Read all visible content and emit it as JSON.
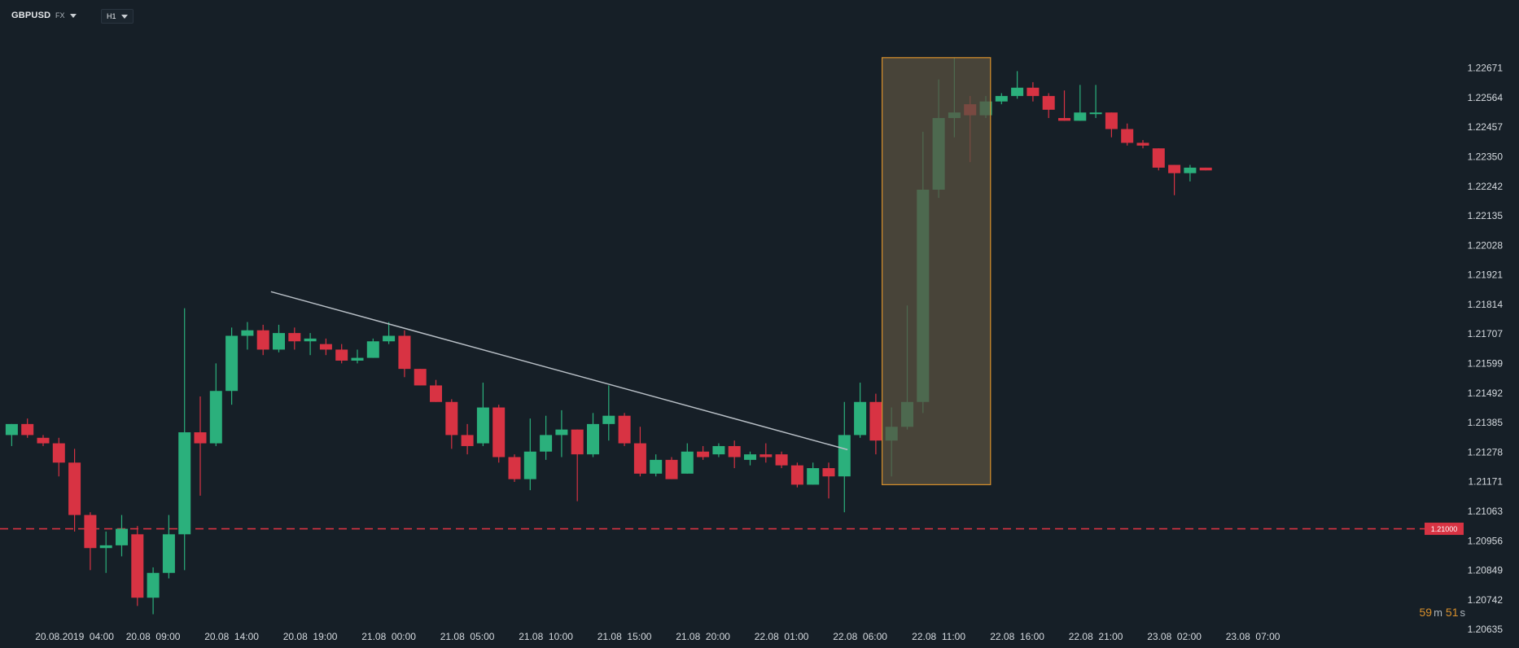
{
  "header": {
    "symbol": "GBPUSD",
    "market": "FX",
    "timeframe": "H1"
  },
  "countdown": {
    "minutes": "59",
    "minutes_unit": "m",
    "seconds": "51",
    "seconds_unit": "s"
  },
  "colors": {
    "background": "#161f27",
    "up": "#2bb07c",
    "down": "#d83343",
    "trendline": "#b7bec5",
    "highlight_border": "#d9902b",
    "highlight_fill": "#5a5240",
    "level_line": "#d83343"
  },
  "chart_data": {
    "type": "candlestick",
    "y_ticks": [
      "1.22671",
      "1.22564",
      "1.22457",
      "1.22350",
      "1.22242",
      "1.22135",
      "1.22028",
      "1.21921",
      "1.21814",
      "1.21707",
      "1.21599",
      "1.21492",
      "1.21385",
      "1.21278",
      "1.21171",
      "1.21063",
      "1.20956",
      "1.20849",
      "1.20742",
      "1.20635"
    ],
    "ylim": [
      1.206,
      1.228
    ],
    "x_labels": [
      "20.08.2019  04:00",
      "20.08  09:00",
      "20.08  14:00",
      "20.08  19:00",
      "21.08  00:00",
      "21.08  05:00",
      "21.08  10:00",
      "21.08  15:00",
      "21.08  20:00",
      "22.08  01:00",
      "22.08  06:00",
      "22.08  11:00",
      "22.08  16:00",
      "22.08  21:00",
      "23.08  02:00",
      "23.08  07:00"
    ],
    "x_label_bars": [
      4,
      9,
      14,
      19,
      24,
      29,
      34,
      39,
      44,
      49,
      54,
      59,
      64,
      69,
      74,
      79
    ],
    "candles": [
      {
        "o": 1.2134,
        "h": 1.2138,
        "l": 1.213,
        "c": 1.2138
      },
      {
        "o": 1.2138,
        "h": 1.214,
        "l": 1.2133,
        "c": 1.2134
      },
      {
        "o": 1.2133,
        "h": 1.2134,
        "l": 1.213,
        "c": 1.2131
      },
      {
        "o": 1.2131,
        "h": 1.2133,
        "l": 1.2119,
        "c": 1.2124
      },
      {
        "o": 1.2124,
        "h": 1.2129,
        "l": 1.2099,
        "c": 1.2105
      },
      {
        "o": 1.2105,
        "h": 1.2106,
        "l": 1.2085,
        "c": 1.2093
      },
      {
        "o": 1.2093,
        "h": 1.2099,
        "l": 1.2084,
        "c": 1.2094
      },
      {
        "o": 1.2094,
        "h": 1.2105,
        "l": 1.209,
        "c": 1.21
      },
      {
        "o": 1.2098,
        "h": 1.2101,
        "l": 1.2072,
        "c": 1.2075
      },
      {
        "o": 1.2075,
        "h": 1.2086,
        "l": 1.2069,
        "c": 1.2084
      },
      {
        "o": 1.2084,
        "h": 1.2105,
        "l": 1.2082,
        "c": 1.2098
      },
      {
        "o": 1.2098,
        "h": 1.218,
        "l": 1.2085,
        "c": 1.2135
      },
      {
        "o": 1.2135,
        "h": 1.2148,
        "l": 1.2112,
        "c": 1.2131
      },
      {
        "o": 1.2131,
        "h": 1.216,
        "l": 1.213,
        "c": 1.215
      },
      {
        "o": 1.215,
        "h": 1.2173,
        "l": 1.2145,
        "c": 1.217
      },
      {
        "o": 1.217,
        "h": 1.2175,
        "l": 1.2165,
        "c": 1.2172
      },
      {
        "o": 1.2172,
        "h": 1.2174,
        "l": 1.2163,
        "c": 1.2165
      },
      {
        "o": 1.2165,
        "h": 1.2174,
        "l": 1.2164,
        "c": 1.2171
      },
      {
        "o": 1.2171,
        "h": 1.2173,
        "l": 1.2165,
        "c": 1.2168
      },
      {
        "o": 1.2168,
        "h": 1.2171,
        "l": 1.2163,
        "c": 1.2169
      },
      {
        "o": 1.2167,
        "h": 1.2169,
        "l": 1.2163,
        "c": 1.2165
      },
      {
        "o": 1.2165,
        "h": 1.2167,
        "l": 1.216,
        "c": 1.2161
      },
      {
        "o": 1.2161,
        "h": 1.2165,
        "l": 1.216,
        "c": 1.2162
      },
      {
        "o": 1.2162,
        "h": 1.2169,
        "l": 1.2162,
        "c": 1.2168
      },
      {
        "o": 1.2168,
        "h": 1.2175,
        "l": 1.2167,
        "c": 1.217
      },
      {
        "o": 1.217,
        "h": 1.2172,
        "l": 1.2155,
        "c": 1.2158
      },
      {
        "o": 1.2158,
        "h": 1.2158,
        "l": 1.2152,
        "c": 1.2152
      },
      {
        "o": 1.2152,
        "h": 1.2154,
        "l": 1.2146,
        "c": 1.2146
      },
      {
        "o": 1.2146,
        "h": 1.2147,
        "l": 1.2129,
        "c": 1.2134
      },
      {
        "o": 1.2134,
        "h": 1.2138,
        "l": 1.2127,
        "c": 1.213
      },
      {
        "o": 1.2131,
        "h": 1.2153,
        "l": 1.213,
        "c": 1.2144
      },
      {
        "o": 1.2144,
        "h": 1.2145,
        "l": 1.2124,
        "c": 1.2126
      },
      {
        "o": 1.2126,
        "h": 1.2127,
        "l": 1.2117,
        "c": 1.2118
      },
      {
        "o": 1.2118,
        "h": 1.214,
        "l": 1.2114,
        "c": 1.2128
      },
      {
        "o": 1.2128,
        "h": 1.2141,
        "l": 1.2125,
        "c": 1.2134
      },
      {
        "o": 1.2134,
        "h": 1.2143,
        "l": 1.2126,
        "c": 1.2136
      },
      {
        "o": 1.2136,
        "h": 1.2136,
        "l": 1.211,
        "c": 1.2127
      },
      {
        "o": 1.2127,
        "h": 1.2142,
        "l": 1.2126,
        "c": 1.2138
      },
      {
        "o": 1.2138,
        "h": 1.2152,
        "l": 1.2132,
        "c": 1.2141
      },
      {
        "o": 1.2141,
        "h": 1.2142,
        "l": 1.213,
        "c": 1.2131
      },
      {
        "o": 1.2131,
        "h": 1.2137,
        "l": 1.2119,
        "c": 1.212
      },
      {
        "o": 1.212,
        "h": 1.2127,
        "l": 1.2119,
        "c": 1.2125
      },
      {
        "o": 1.2125,
        "h": 1.2126,
        "l": 1.2118,
        "c": 1.2118
      },
      {
        "o": 1.212,
        "h": 1.2131,
        "l": 1.212,
        "c": 1.2128
      },
      {
        "o": 1.2128,
        "h": 1.213,
        "l": 1.2125,
        "c": 1.2126
      },
      {
        "o": 1.2127,
        "h": 1.2131,
        "l": 1.2126,
        "c": 1.213
      },
      {
        "o": 1.213,
        "h": 1.2132,
        "l": 1.2122,
        "c": 1.2126
      },
      {
        "o": 1.2125,
        "h": 1.2128,
        "l": 1.2123,
        "c": 1.2127
      },
      {
        "o": 1.2127,
        "h": 1.2131,
        "l": 1.2124,
        "c": 1.2126
      },
      {
        "o": 1.2127,
        "h": 1.2128,
        "l": 1.2122,
        "c": 1.2123
      },
      {
        "o": 1.2123,
        "h": 1.2124,
        "l": 1.2115,
        "c": 1.2116
      },
      {
        "o": 1.2116,
        "h": 1.2124,
        "l": 1.2116,
        "c": 1.2122
      },
      {
        "o": 1.2122,
        "h": 1.2124,
        "l": 1.2111,
        "c": 1.2119
      },
      {
        "o": 1.2119,
        "h": 1.2146,
        "l": 1.2106,
        "c": 1.2134
      },
      {
        "o": 1.2134,
        "h": 1.2153,
        "l": 1.2133,
        "c": 1.2146
      },
      {
        "o": 1.2146,
        "h": 1.2149,
        "l": 1.2127,
        "c": 1.2132
      },
      {
        "o": 1.2132,
        "h": 1.2144,
        "l": 1.2119,
        "c": 1.2137
      },
      {
        "o": 1.2137,
        "h": 1.2181,
        "l": 1.2136,
        "c": 1.2146
      },
      {
        "o": 1.2146,
        "h": 1.2244,
        "l": 1.2142,
        "c": 1.2223
      },
      {
        "o": 1.2223,
        "h": 1.2263,
        "l": 1.222,
        "c": 1.2249
      },
      {
        "o": 1.2249,
        "h": 1.2271,
        "l": 1.2242,
        "c": 1.2251
      },
      {
        "o": 1.2254,
        "h": 1.2257,
        "l": 1.2233,
        "c": 1.225
      },
      {
        "o": 1.225,
        "h": 1.2257,
        "l": 1.2249,
        "c": 1.2255
      },
      {
        "o": 1.2255,
        "h": 1.2258,
        "l": 1.2254,
        "c": 1.2257
      },
      {
        "o": 1.2257,
        "h": 1.2266,
        "l": 1.2256,
        "c": 1.226
      },
      {
        "o": 1.226,
        "h": 1.2262,
        "l": 1.2255,
        "c": 1.2257
      },
      {
        "o": 1.2257,
        "h": 1.2258,
        "l": 1.2249,
        "c": 1.2252
      },
      {
        "o": 1.2249,
        "h": 1.2259,
        "l": 1.2248,
        "c": 1.2248
      },
      {
        "o": 1.2248,
        "h": 1.2261,
        "l": 1.2248,
        "c": 1.2251
      },
      {
        "o": 1.2251,
        "h": 1.2261,
        "l": 1.2249,
        "c": 1.2251
      },
      {
        "o": 1.2251,
        "h": 1.2251,
        "l": 1.2242,
        "c": 1.2245
      },
      {
        "o": 1.2245,
        "h": 1.2247,
        "l": 1.2239,
        "c": 1.224
      },
      {
        "o": 1.224,
        "h": 1.2241,
        "l": 1.2238,
        "c": 1.2239
      },
      {
        "o": 1.2238,
        "h": 1.2238,
        "l": 1.223,
        "c": 1.2231
      },
      {
        "o": 1.2232,
        "h": 1.2232,
        "l": 1.2221,
        "c": 1.2229
      },
      {
        "o": 1.2229,
        "h": 1.2232,
        "l": 1.2226,
        "c": 1.2231
      },
      {
        "o": 1.2231,
        "h": 1.2231,
        "l": 1.223,
        "c": 1.223
      }
    ],
    "trendline": {
      "x1": 16.5,
      "y1": 1.2186,
      "x2": 53.2,
      "y2": 1.21287
    },
    "highlight": {
      "from_bar": 55.4,
      "to_bar": 62.3,
      "top": 1.22709,
      "bottom": 1.2116
    },
    "level": {
      "price": 1.21,
      "label": "1.21000"
    },
    "gridlines": false
  }
}
